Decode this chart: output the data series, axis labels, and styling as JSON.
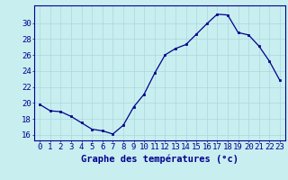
{
  "x": [
    0,
    1,
    2,
    3,
    4,
    5,
    6,
    7,
    8,
    9,
    10,
    11,
    12,
    13,
    14,
    15,
    16,
    17,
    18,
    19,
    20,
    21,
    22,
    23
  ],
  "y": [
    19.8,
    19.0,
    18.9,
    18.3,
    17.5,
    16.7,
    16.5,
    16.1,
    17.2,
    19.5,
    21.1,
    23.7,
    26.0,
    26.8,
    27.3,
    28.6,
    29.9,
    31.1,
    31.0,
    28.8,
    28.5,
    27.1,
    25.2,
    22.8
  ],
  "line_color": "#00008b",
  "marker": "s",
  "marker_size": 2.0,
  "bg_color": "#c8eef0",
  "grid_color": "#aad8dc",
  "xlabel": "Graphe des températures (°c)",
  "xlabel_fontsize": 7.5,
  "xtick_labels": [
    "0",
    "1",
    "2",
    "3",
    "4",
    "5",
    "6",
    "7",
    "8",
    "9",
    "10",
    "11",
    "12",
    "13",
    "14",
    "15",
    "16",
    "17",
    "18",
    "19",
    "20",
    "21",
    "22",
    "23"
  ],
  "ytick_values": [
    16,
    18,
    20,
    22,
    24,
    26,
    28,
    30
  ],
  "ylim": [
    15.3,
    32.2
  ],
  "xlim": [
    -0.5,
    23.5
  ],
  "tick_color": "#00008b",
  "tick_fontsize": 6.5,
  "axis_color": "#00008b",
  "linewidth": 0.9
}
